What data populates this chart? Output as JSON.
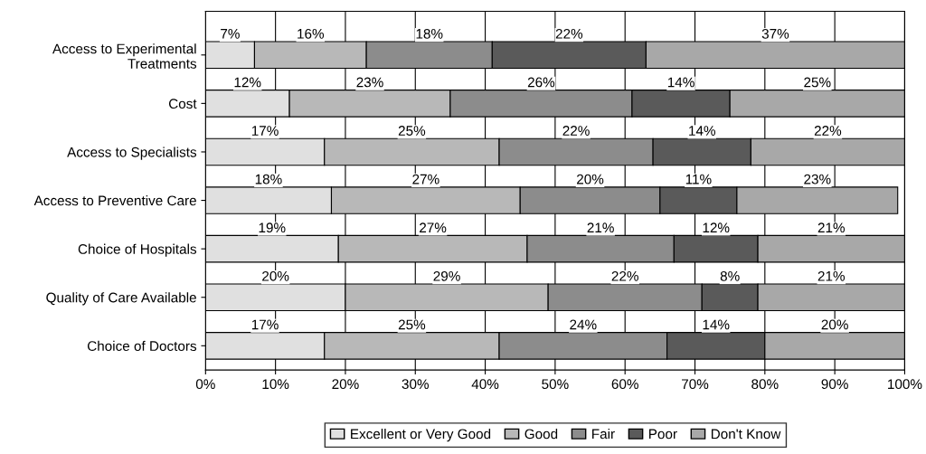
{
  "chart_data": {
    "type": "bar",
    "orientation": "horizontal",
    "stacked": true,
    "grid": "x",
    "legend": "bottom",
    "categories": [
      "Access to Experimental\nTreatments",
      "Cost",
      "Access to Specialists",
      "Access to Preventive Care",
      "Choice of Hospitals",
      "Quality of Care Available",
      "Choice of Doctors"
    ],
    "series": [
      {
        "name": "Excellent or Very Good",
        "color": "#e0e0e0",
        "values": [
          7,
          12,
          17,
          18,
          19,
          20,
          17
        ],
        "value_labels": [
          "7%",
          "12%",
          "17%",
          "18%",
          "19%",
          "20%",
          "17%"
        ]
      },
      {
        "name": "Good",
        "color": "#b8b8b8",
        "values": [
          16,
          23,
          25,
          27,
          27,
          29,
          25
        ],
        "value_labels": [
          "16%",
          "23%",
          "25%",
          "27%",
          "27%",
          "29%",
          "25%"
        ]
      },
      {
        "name": "Fair",
        "color": "#8c8c8c",
        "values": [
          18,
          26,
          22,
          20,
          21,
          22,
          24
        ],
        "value_labels": [
          "18%",
          "26%",
          "22%",
          "20%",
          "21%",
          "22%",
          "24%"
        ]
      },
      {
        "name": "Poor",
        "color": "#5a5a5a",
        "values": [
          22,
          14,
          14,
          11,
          12,
          8,
          14
        ],
        "value_labels": [
          "22%",
          "14%",
          "14%",
          "11%",
          "12%",
          "8%",
          "14%"
        ]
      },
      {
        "name": "Don't Know",
        "color": "#a8a8a8",
        "values": [
          37,
          25,
          22,
          23,
          21,
          21,
          20
        ],
        "value_labels": [
          "37%",
          "25%",
          "22%",
          "23%",
          "21%",
          "21%",
          "20%"
        ]
      }
    ],
    "xlim": [
      0,
      100
    ],
    "xticks": [
      {
        "value": 0,
        "label": "0%"
      },
      {
        "value": 10,
        "label": "10%"
      },
      {
        "value": 20,
        "label": "20%"
      },
      {
        "value": 30,
        "label": "30%"
      },
      {
        "value": 40,
        "label": "40%"
      },
      {
        "value": 50,
        "label": "50%"
      },
      {
        "value": 60,
        "label": "60%"
      },
      {
        "value": 70,
        "label": "70%"
      },
      {
        "value": 80,
        "label": "80%"
      },
      {
        "value": 90,
        "label": "90%"
      },
      {
        "value": 100,
        "label": "100%"
      }
    ]
  }
}
